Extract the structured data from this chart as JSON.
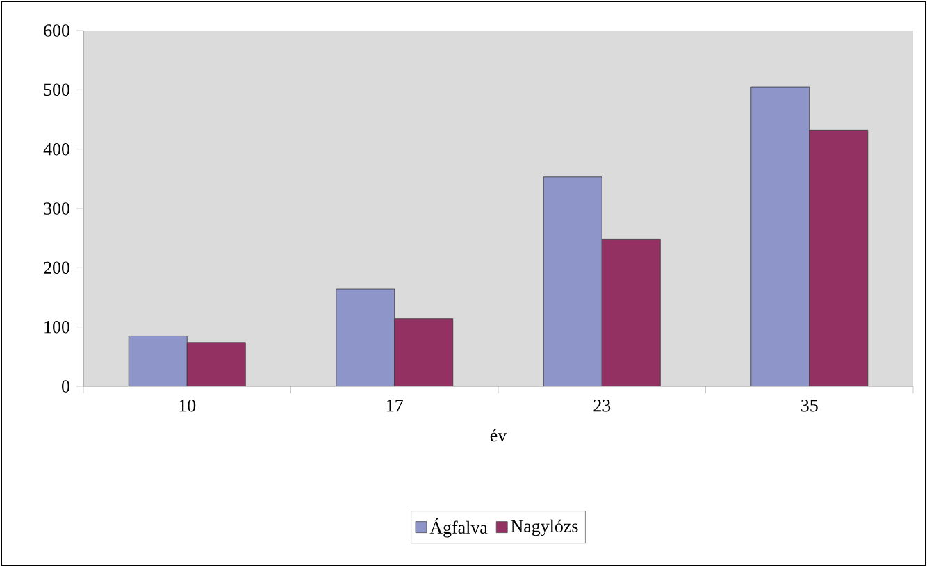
{
  "chart_data": {
    "type": "bar",
    "xlabel": "év",
    "categories": [
      "10",
      "17",
      "23",
      "35"
    ],
    "series": [
      {
        "name": "Ágfalva",
        "color": "#8e95c9",
        "values": [
          85,
          164,
          353,
          505
        ]
      },
      {
        "name": "Nagylózs",
        "color": "#933163",
        "values": [
          74,
          114,
          248,
          432
        ]
      }
    ],
    "ylim": [
      0,
      600
    ],
    "yticks": [
      0,
      100,
      200,
      300,
      400,
      500,
      600
    ],
    "grid": false,
    "legend": "bottom"
  }
}
